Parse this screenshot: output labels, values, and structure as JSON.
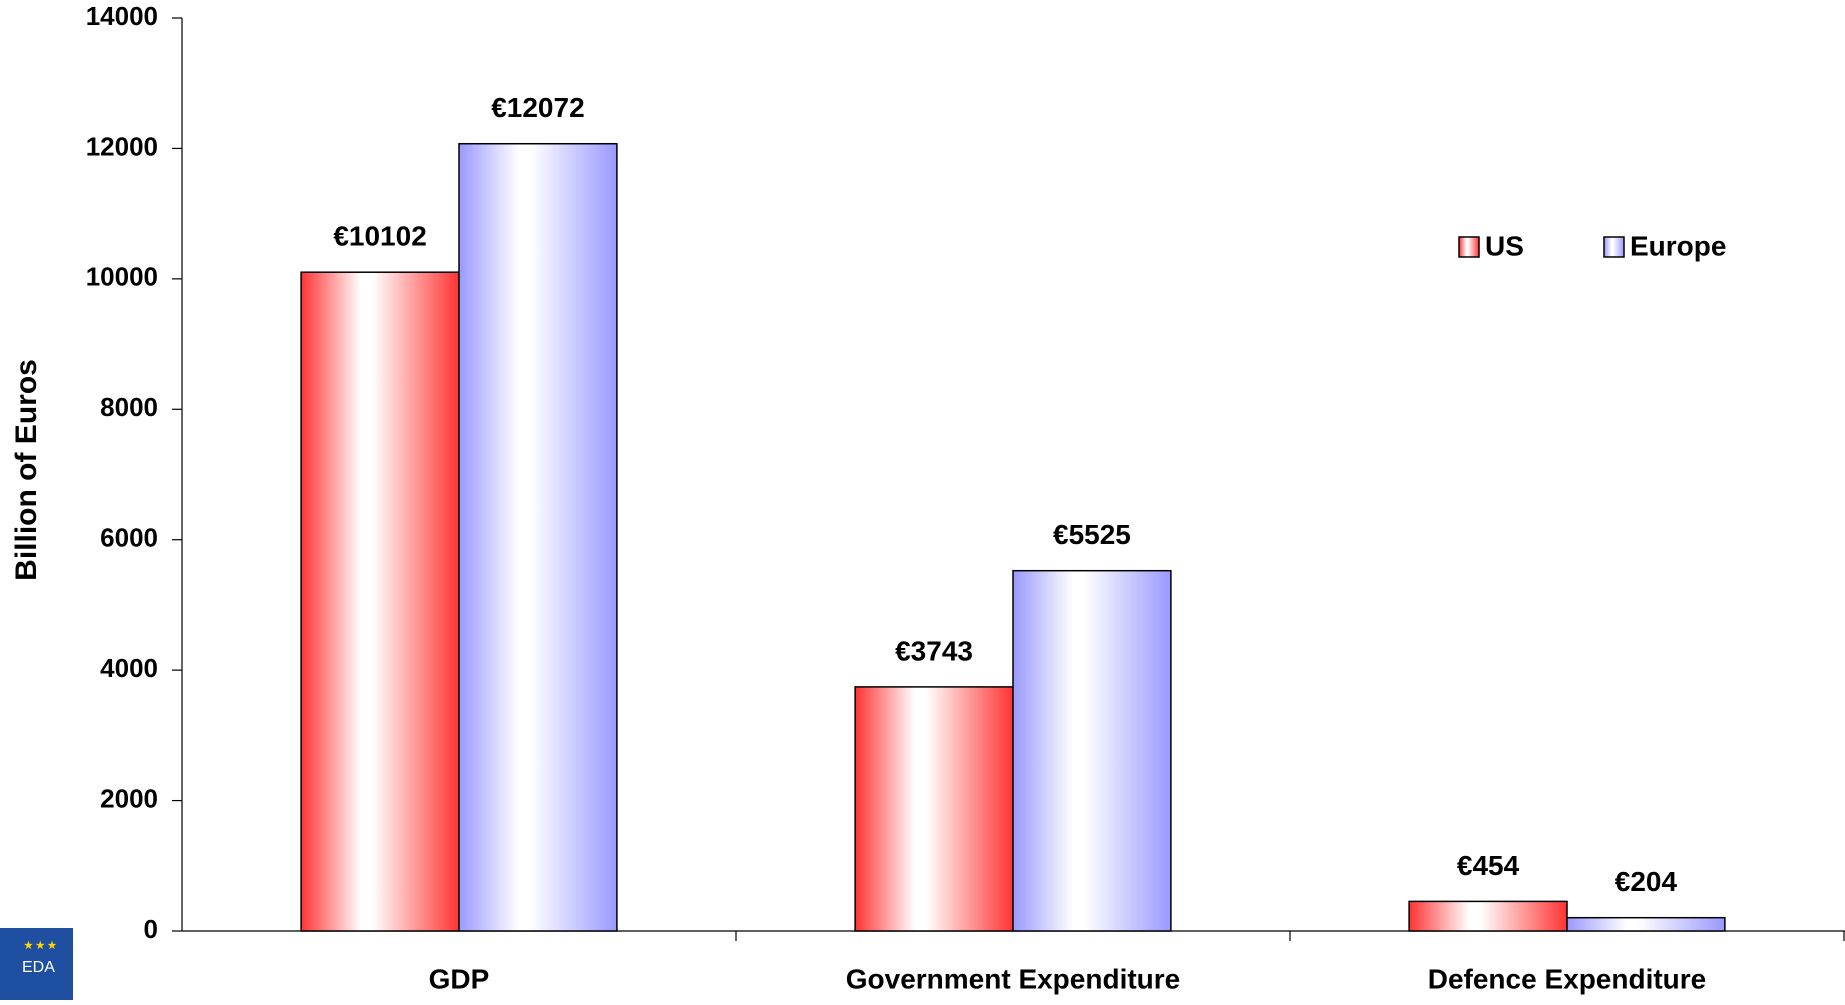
{
  "chart_data": {
    "type": "bar",
    "y_label": "Billion of Euros",
    "categories": [
      "GDP",
      "Government Expenditure",
      "Defence Expenditure"
    ],
    "series": [
      {
        "name": "US",
        "color": "#ff3333",
        "values": [
          10102,
          3743,
          454
        ],
        "value_labels": [
          "€10102",
          "€3743",
          "€454"
        ]
      },
      {
        "name": "Europe",
        "color": "#9999ff",
        "values": [
          12072,
          5525,
          204
        ],
        "value_labels": [
          "€12072",
          "€5525",
          "€204"
        ]
      }
    ],
    "ylim": [
      0,
      14000
    ],
    "yticks": [
      0,
      2000,
      4000,
      6000,
      8000,
      10000,
      12000,
      14000
    ],
    "grid": false,
    "legend": "upper right"
  },
  "logo": {
    "text": "EDA"
  }
}
